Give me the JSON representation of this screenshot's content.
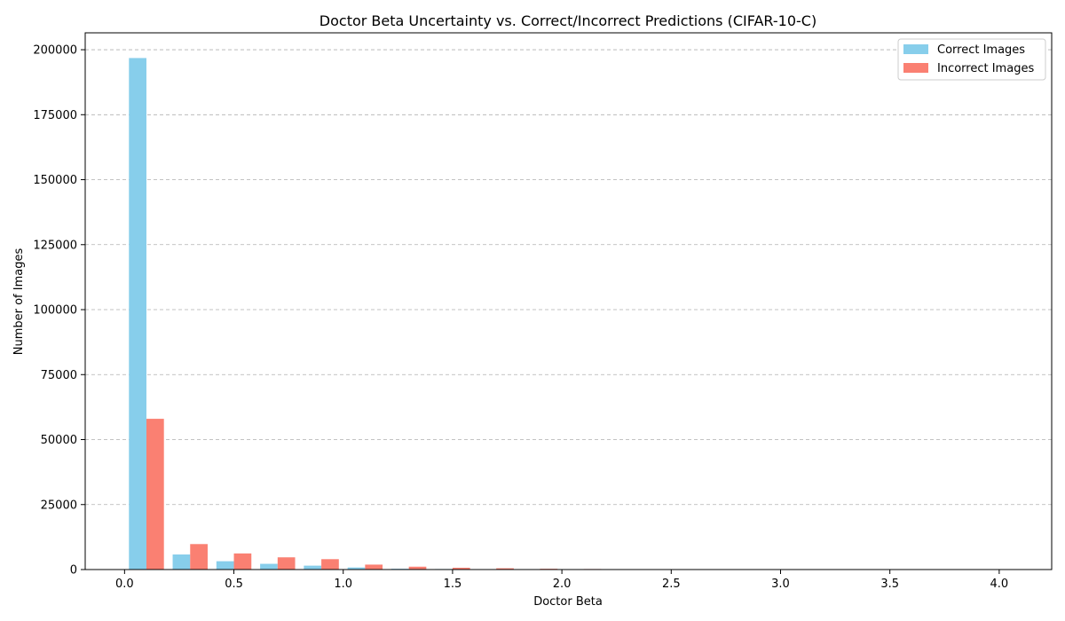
{
  "chart_data": {
    "type": "bar",
    "title": "Doctor Beta Uncertainty vs. Correct/Incorrect Predictions (CIFAR-10-C)",
    "xlabel": "Doctor Beta",
    "ylabel": "Number of Images",
    "xlim": [
      -0.18,
      4.24
    ],
    "ylim": [
      0,
      206500
    ],
    "xticks": [
      0.0,
      0.5,
      1.0,
      1.5,
      2.0,
      2.5,
      3.0,
      3.5,
      4.0
    ],
    "xtick_labels": [
      "0.0",
      "0.5",
      "1.0",
      "1.5",
      "2.0",
      "2.5",
      "3.0",
      "3.5",
      "4.0"
    ],
    "yticks": [
      0,
      25000,
      50000,
      75000,
      100000,
      125000,
      150000,
      175000,
      200000
    ],
    "ytick_labels": [
      "0",
      "25000",
      "50000",
      "75000",
      "100000",
      "125000",
      "150000",
      "175000",
      "200000"
    ],
    "grid": "y-dashed",
    "legend_position": "top-right",
    "bin_centers": [
      0.1,
      0.3,
      0.5,
      0.7,
      0.9,
      1.1,
      1.3,
      1.5,
      1.7,
      1.9,
      2.1,
      2.3,
      2.5,
      2.7,
      2.9,
      3.1,
      3.3,
      3.5,
      3.7,
      3.9
    ],
    "bar_width": 0.08,
    "series": [
      {
        "name": "Correct Images",
        "color": "#87ceeb",
        "values": [
          196800,
          5800,
          3200,
          2200,
          1500,
          800,
          300,
          200,
          100,
          50,
          20,
          10,
          0,
          0,
          0,
          0,
          0,
          0,
          0,
          0
        ]
      },
      {
        "name": "Incorrect Images",
        "color": "#fa8072",
        "values": [
          58000,
          9800,
          6200,
          4700,
          4000,
          1900,
          1100,
          700,
          500,
          300,
          200,
          150,
          0,
          0,
          0,
          0,
          0,
          0,
          0,
          0
        ]
      }
    ]
  }
}
